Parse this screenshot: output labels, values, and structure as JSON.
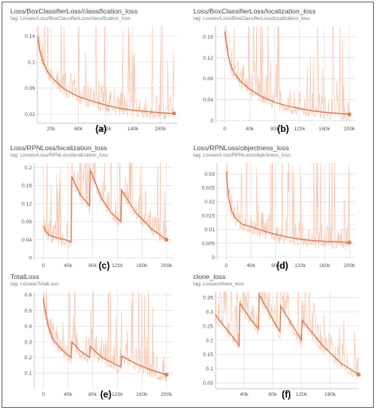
{
  "colors": {
    "smoothed": "#e07f55",
    "raw": "#f6c7b0",
    "grid": "#e1e1e1",
    "axis": "#c8c8c8"
  },
  "chart_data": [
    {
      "type": "line",
      "caption": "(a)",
      "title": "Loss/BoxClassifierLoss/classification_loss",
      "tag": "tag: Losses/Loss/BoxClassifierLoss/classification_loss",
      "xlim": [
        0,
        205000
      ],
      "ylim": [
        0.006,
        0.155
      ],
      "xticks": [
        20000,
        60000,
        100000,
        140000,
        180000
      ],
      "xtick_labels": [
        "20k",
        "60k",
        "100k",
        "140k",
        "180k"
      ],
      "yticks": [
        0.02,
        0.06,
        0.1,
        0.14
      ],
      "ytick_labels": [
        "0.02",
        "0.06",
        "0.1",
        "0.14"
      ],
      "series": [
        {
          "x": [
            0,
            3000,
            8000,
            15000,
            25000,
            40000,
            60000,
            80000,
            100000,
            120000,
            140000,
            160000,
            180000,
            200000
          ],
          "y": [
            0.14,
            0.12,
            0.1,
            0.085,
            0.072,
            0.058,
            0.047,
            0.04,
            0.034,
            0.029,
            0.026,
            0.024,
            0.022,
            0.021
          ]
        }
      ]
    },
    {
      "type": "line",
      "caption": "(b)",
      "title": "Loss/BoxClassifierLoss/localization_loss",
      "tag": "tag: Losses/Loss/BoxClassifierLoss/localization_loss",
      "xlim": [
        -15000,
        210000
      ],
      "ylim": [
        -0.005,
        0.18
      ],
      "xticks": [
        0,
        40000,
        80000,
        120000,
        160000,
        200000
      ],
      "xtick_labels": [
        "0",
        "40k",
        "80k",
        "120k",
        "160k",
        "200k"
      ],
      "yticks": [
        0,
        0.04,
        0.08,
        0.12,
        0.16
      ],
      "ytick_labels": [
        "0",
        "0.04",
        "0.08",
        "0.12",
        "0.16"
      ],
      "series": [
        {
          "x": [
            0,
            3000,
            8000,
            15000,
            25000,
            40000,
            60000,
            80000,
            100000,
            120000,
            140000,
            160000,
            180000,
            200000
          ],
          "y": [
            0.17,
            0.14,
            0.11,
            0.09,
            0.075,
            0.06,
            0.045,
            0.035,
            0.028,
            0.023,
            0.019,
            0.016,
            0.014,
            0.012
          ]
        }
      ]
    },
    {
      "type": "line",
      "caption": "(c)",
      "title": "Loss/RPNLoss/localization_loss",
      "tag": "tag: Losses/Loss/RPNLoss/localization_loss",
      "xlim": [
        -15000,
        210000
      ],
      "ylim": [
        -0.005,
        0.21
      ],
      "xticks": [
        0,
        40000,
        80000,
        120000,
        160000,
        200000
      ],
      "xtick_labels": [
        "0",
        "40k",
        "80k",
        "120k",
        "160k",
        "200k"
      ],
      "yticks": [
        0,
        0.04,
        0.08,
        0.12,
        0.16,
        0.2
      ],
      "ytick_labels": [
        "0",
        "0.04",
        "0.08",
        "0.12",
        "0.16",
        "0.2"
      ],
      "series": [
        {
          "x": [
            0,
            3000,
            10000,
            20000,
            35000,
            45000,
            46000,
            60000,
            75000,
            76000,
            95000,
            110000,
            126000,
            127000,
            150000,
            175000,
            200000
          ],
          "y": [
            0.07,
            0.06,
            0.05,
            0.045,
            0.04,
            0.035,
            0.18,
            0.14,
            0.115,
            0.195,
            0.13,
            0.1,
            0.08,
            0.15,
            0.1,
            0.065,
            0.04
          ]
        }
      ]
    },
    {
      "type": "line",
      "caption": "(d)",
      "title": "Loss/RPNLoss/objectness_loss",
      "tag": "tag: Losses/Loss/RPNLoss/objectness_loss",
      "xlim": [
        -15000,
        210000
      ],
      "ylim": [
        -0.001,
        0.034
      ],
      "xticks": [
        0,
        40000,
        80000,
        120000,
        160000,
        200000
      ],
      "xtick_labels": [
        "0",
        "40k",
        "80k",
        "120k",
        "160k",
        "200k"
      ],
      "yticks": [
        0,
        0.005,
        0.01,
        0.015,
        0.02,
        0.025,
        0.03
      ],
      "ytick_labels": [
        "0",
        "0.005",
        "0.01",
        "0.015",
        "0.02",
        "0.025",
        "0.03"
      ],
      "series": [
        {
          "x": [
            0,
            3000,
            8000,
            15000,
            25000,
            40000,
            60000,
            80000,
            100000,
            120000,
            140000,
            160000,
            180000,
            200000
          ],
          "y": [
            0.031,
            0.022,
            0.017,
            0.014,
            0.012,
            0.011,
            0.0095,
            0.0082,
            0.0072,
            0.0065,
            0.006,
            0.0057,
            0.0055,
            0.0053
          ]
        }
      ]
    },
    {
      "type": "line",
      "caption": "(e)",
      "title": "TotalLoss",
      "tag": "tag: Losses/TotalLoss",
      "xlim": [
        -15000,
        210000
      ],
      "ylim": [
        0,
        0.62
      ],
      "xticks": [
        0,
        40000,
        80000,
        120000,
        160000,
        200000
      ],
      "xtick_labels": [
        "0",
        "40k",
        "80k",
        "120k",
        "160k",
        "200k"
      ],
      "yticks": [
        0.1,
        0.2,
        0.3,
        0.4,
        0.5,
        0.6
      ],
      "ytick_labels": [
        "0.1",
        "0.2",
        "0.3",
        "0.4",
        "0.5",
        "0.6"
      ],
      "series": [
        {
          "x": [
            0,
            2000,
            8000,
            15000,
            25000,
            35000,
            45000,
            46000,
            60000,
            75000,
            76000,
            95000,
            110000,
            126000,
            127000,
            150000,
            175000,
            200000
          ],
          "y": [
            0.58,
            0.52,
            0.4,
            0.32,
            0.27,
            0.23,
            0.2,
            0.3,
            0.24,
            0.2,
            0.27,
            0.2,
            0.17,
            0.14,
            0.21,
            0.16,
            0.12,
            0.09
          ]
        }
      ]
    },
    {
      "type": "line",
      "caption": "(f)",
      "title": "clone_loss",
      "tag": "tag: Losses/clone_loss",
      "xlim": [
        0,
        200000
      ],
      "ylim": [
        0.03,
        0.37
      ],
      "xticks": [
        40000,
        80000,
        120000,
        160000
      ],
      "xtick_labels": [
        "40k",
        "80k",
        "120k",
        "160k"
      ],
      "yticks": [
        0.05,
        0.1,
        0.15,
        0.2,
        0.25,
        0.3,
        0.35
      ],
      "ytick_labels": [
        "0.05",
        "0.1",
        "0.15",
        "0.2",
        "0.25",
        "0.3",
        "0.35"
      ],
      "series": [
        {
          "x": [
            0,
            5000,
            15000,
            28000,
            33000,
            34000,
            50000,
            60000,
            61000,
            85000,
            90000,
            91000,
            120000,
            121000,
            150000,
            175000,
            200000
          ],
          "y": [
            0.29,
            0.27,
            0.24,
            0.2,
            0.18,
            0.33,
            0.27,
            0.24,
            0.36,
            0.25,
            0.23,
            0.32,
            0.2,
            0.27,
            0.18,
            0.12,
            0.08
          ]
        }
      ]
    }
  ]
}
